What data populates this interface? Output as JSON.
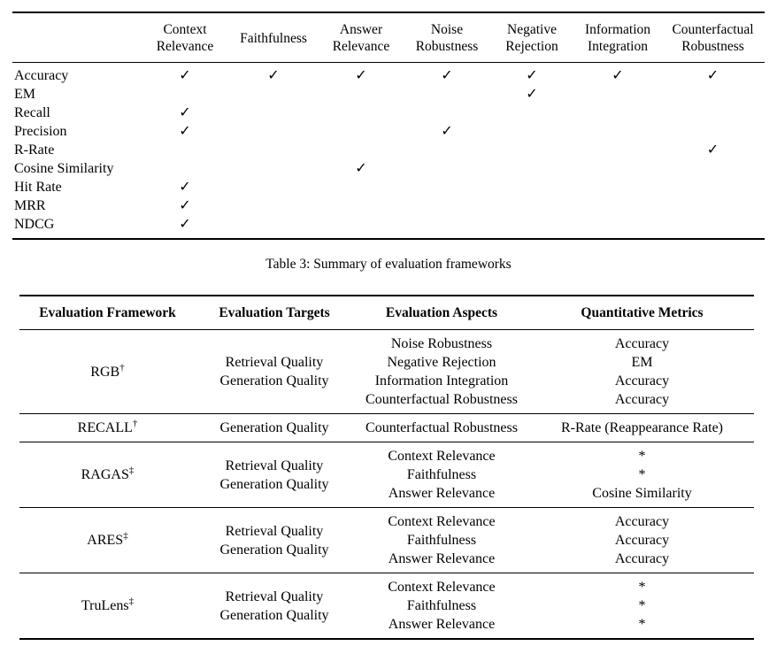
{
  "colors": {
    "text": "#000000",
    "background": "#ffffff",
    "rule": "#000000"
  },
  "caption": "Table 3: Summary of evaluation frameworks",
  "table1": {
    "check_glyph": "✓",
    "columns": [
      "Context Relevance",
      "Faithfulness",
      "Answer Relevance",
      "Noise Robustness",
      "Negative Rejection",
      "Information Integration",
      "Counterfactual Robustness"
    ],
    "rows": [
      {
        "label": "Accuracy",
        "checks": [
          1,
          1,
          1,
          1,
          1,
          1,
          1
        ]
      },
      {
        "label": "EM",
        "checks": [
          0,
          0,
          0,
          0,
          1,
          0,
          0
        ]
      },
      {
        "label": "Recall",
        "checks": [
          1,
          0,
          0,
          0,
          0,
          0,
          0
        ]
      },
      {
        "label": "Precision",
        "checks": [
          1,
          0,
          0,
          1,
          0,
          0,
          0
        ]
      },
      {
        "label": "R-Rate",
        "checks": [
          0,
          0,
          0,
          0,
          0,
          0,
          1
        ]
      },
      {
        "label": "Cosine Similarity",
        "checks": [
          0,
          0,
          1,
          0,
          0,
          0,
          0
        ]
      },
      {
        "label": "Hit Rate",
        "checks": [
          1,
          0,
          0,
          0,
          0,
          0,
          0
        ]
      },
      {
        "label": "MRR",
        "checks": [
          1,
          0,
          0,
          0,
          0,
          0,
          0
        ]
      },
      {
        "label": "NDCG",
        "checks": [
          1,
          0,
          0,
          0,
          0,
          0,
          0
        ]
      }
    ]
  },
  "table2": {
    "columns": [
      "Evaluation Framework",
      "Evaluation Targets",
      "Evaluation Aspects",
      "Quantitative Metrics"
    ],
    "rows": [
      {
        "framework": "RGB",
        "marker": "†",
        "targets": [
          "Retrieval Quality",
          "Generation Quality"
        ],
        "aspects": [
          "Noise Robustness",
          "Negative Rejection",
          "Information Integration",
          "Counterfactual Robustness"
        ],
        "metrics": [
          "Accuracy",
          "EM",
          "Accuracy",
          "Accuracy"
        ]
      },
      {
        "framework": "RECALL",
        "marker": "†",
        "targets": [
          "Generation Quality"
        ],
        "aspects": [
          "Counterfactual Robustness"
        ],
        "metrics": [
          "R-Rate (Reappearance Rate)"
        ]
      },
      {
        "framework": "RAGAS",
        "marker": "‡",
        "targets": [
          "Retrieval Quality",
          "Generation Quality"
        ],
        "aspects": [
          "Context Relevance",
          "Faithfulness",
          "Answer Relevance"
        ],
        "metrics": [
          "*",
          "*",
          "Cosine Similarity"
        ]
      },
      {
        "framework": "ARES",
        "marker": "‡",
        "targets": [
          "Retrieval Quality",
          "Generation Quality"
        ],
        "aspects": [
          "Context Relevance",
          "Faithfulness",
          "Answer Relevance"
        ],
        "metrics": [
          "Accuracy",
          "Accuracy",
          "Accuracy"
        ]
      },
      {
        "framework": "TruLens",
        "marker": "‡",
        "targets": [
          "Retrieval Quality",
          "Generation Quality"
        ],
        "aspects": [
          "Context Relevance",
          "Faithfulness",
          "Answer Relevance"
        ],
        "metrics": [
          "*",
          "*",
          "*"
        ]
      }
    ]
  }
}
